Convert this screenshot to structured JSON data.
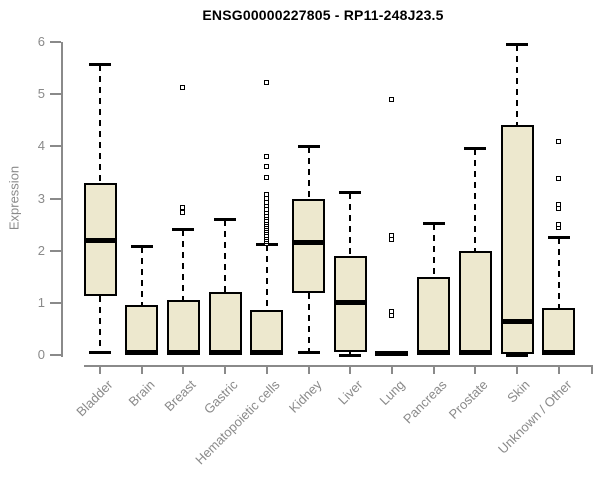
{
  "chart_data": {
    "type": "boxplot",
    "title": "ENSG00000227805 - RP11-248J23.5",
    "xlabel": "",
    "ylabel": "Expression",
    "ylim": [
      0,
      6
    ],
    "yticks": [
      0,
      1,
      2,
      3,
      4,
      5,
      6
    ],
    "grid": false,
    "legend": null,
    "categories": [
      "Bladder",
      "Brain",
      "Breast",
      "Gastric",
      "Hematopoietic cells",
      "Kidney",
      "Liver",
      "Lung",
      "Pancreas",
      "Prostate",
      "Skin",
      "Unknown / Other"
    ],
    "boxes": [
      {
        "category": "Bladder",
        "min": 0.05,
        "q1": 1.13,
        "median": 2.2,
        "q3": 3.3,
        "max": 5.55,
        "outliers": []
      },
      {
        "category": "Brain",
        "min": 0,
        "q1": 0,
        "median": 0.04,
        "q3": 0.96,
        "max": 2.07,
        "outliers": []
      },
      {
        "category": "Breast",
        "min": 0,
        "q1": 0,
        "median": 0.04,
        "q3": 1.05,
        "max": 2.4,
        "outliers": [
          2.72,
          2.81,
          5.12
        ]
      },
      {
        "category": "Gastric",
        "min": 0,
        "q1": 0,
        "median": 0.04,
        "q3": 1.2,
        "max": 2.58,
        "outliers": []
      },
      {
        "category": "Hematopoietic cells",
        "min": 0,
        "q1": 0,
        "median": 0.04,
        "q3": 0.86,
        "max": 2.1,
        "outliers": [
          2.13,
          2.17,
          2.21,
          2.25,
          2.29,
          2.33,
          2.37,
          2.41,
          2.45,
          2.49,
          2.53,
          2.57,
          2.62,
          2.67,
          2.72,
          2.78,
          2.85,
          2.91,
          3.0,
          3.06,
          3.39,
          3.6,
          3.79,
          5.22
        ]
      },
      {
        "category": "Kidney",
        "min": 0.06,
        "q1": 1.19,
        "median": 2.15,
        "q3": 3.0,
        "max": 3.98,
        "outliers": []
      },
      {
        "category": "Liver",
        "min": 0,
        "q1": 0.05,
        "median": 1.0,
        "q3": 1.9,
        "max": 3.1,
        "outliers": []
      },
      {
        "category": "Lung",
        "min": 0,
        "q1": 0,
        "median": 0.02,
        "q3": 0.05,
        "max": 0.05,
        "outliers": [
          0.75,
          0.82,
          2.2,
          2.29,
          4.88
        ]
      },
      {
        "category": "Pancreas",
        "min": 0,
        "q1": 0,
        "median": 0.04,
        "q3": 1.49,
        "max": 2.52,
        "outliers": []
      },
      {
        "category": "Prostate",
        "min": 0,
        "q1": 0,
        "median": 0.04,
        "q3": 2.0,
        "max": 3.94,
        "outliers": []
      },
      {
        "category": "Skin",
        "min": 0,
        "q1": 0.02,
        "median": 0.65,
        "q3": 4.4,
        "max": 5.95,
        "outliers": []
      },
      {
        "category": "Unknown / Other",
        "min": 0,
        "q1": 0,
        "median": 0.04,
        "q3": 0.9,
        "max": 2.24,
        "outliers": [
          2.43,
          2.5,
          2.79,
          2.87,
          3.37,
          4.09
        ]
      }
    ],
    "colors": {
      "box_fill": "#EDE8CE",
      "box_border": "#000000",
      "median": "#000000",
      "whisker": "#000000",
      "axis": "#8a8a8a",
      "tick_label": "#8a8a8a",
      "title": "#000000",
      "background": "#ffffff"
    }
  }
}
